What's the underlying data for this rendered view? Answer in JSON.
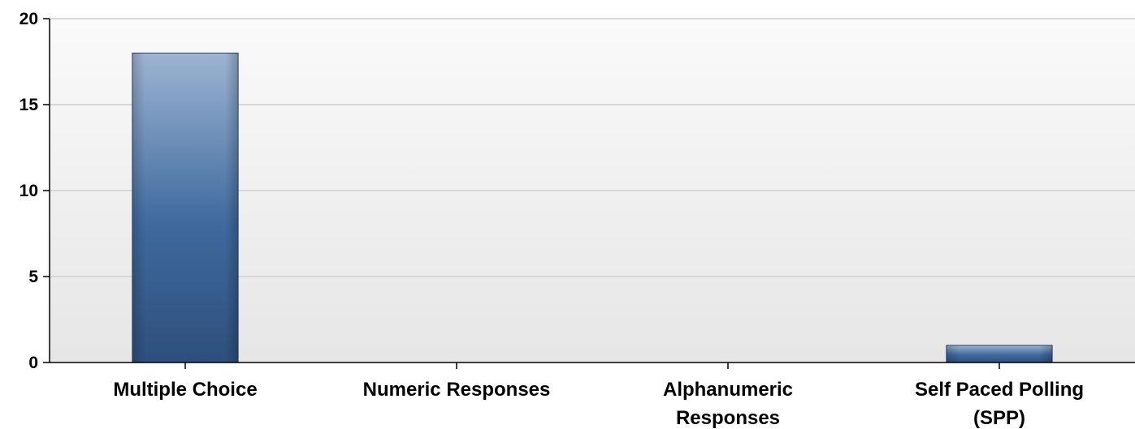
{
  "chart_data": {
    "type": "bar",
    "categories": [
      "Multiple Choice",
      "Numeric Responses",
      "Alphanumeric Responses",
      "Self Paced Polling (SPP)"
    ],
    "category_lines": [
      [
        "Multiple Choice"
      ],
      [
        "Numeric Responses"
      ],
      [
        "Alphanumeric",
        "Responses"
      ],
      [
        "Self Paced Polling",
        "(SPP)"
      ]
    ],
    "values": [
      18,
      0,
      0,
      1
    ],
    "ylim": [
      0,
      20
    ],
    "yticks": [
      0,
      5,
      10,
      15,
      20
    ],
    "title": "",
    "xlabel": "",
    "ylabel": "",
    "grid": true,
    "legend": "none",
    "colors": {
      "bar_top": "#9db4d2",
      "bar_mid": "#3f6a9e",
      "bar_bottom": "#2e4f7c",
      "plot_bg_top": "#fafafa",
      "plot_bg_bottom": "#e6e6e6"
    }
  }
}
